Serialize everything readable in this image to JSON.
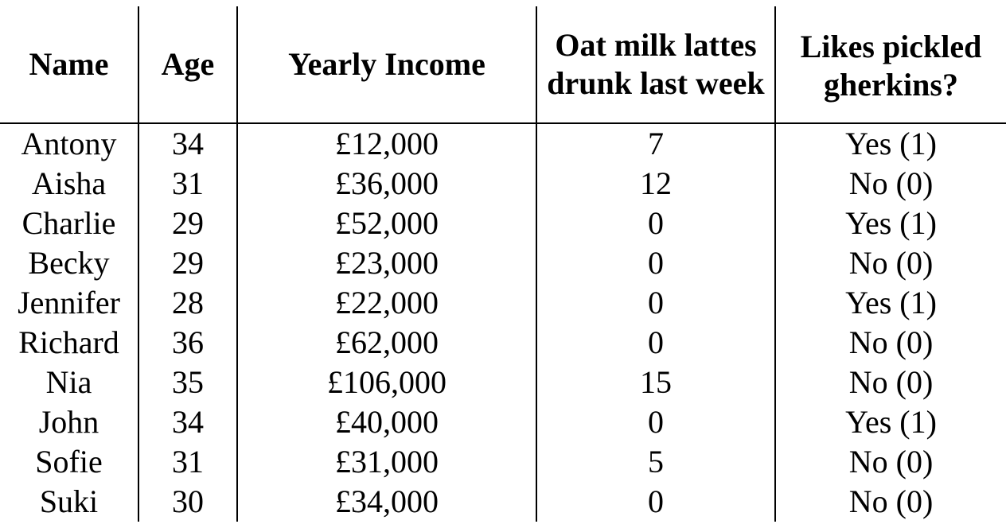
{
  "table": {
    "headers": {
      "name": "Name",
      "age": "Age",
      "income": "Yearly Income",
      "lattes": "Oat milk lattes drunk last week",
      "gherkins": "Likes pickled gherkins?"
    },
    "rows": [
      {
        "name": "Antony",
        "age": "34",
        "income": "£12,000",
        "lattes": "7",
        "gherkins": "Yes (1)"
      },
      {
        "name": "Aisha",
        "age": "31",
        "income": "£36,000",
        "lattes": "12",
        "gherkins": "No (0)"
      },
      {
        "name": "Charlie",
        "age": "29",
        "income": "£52,000",
        "lattes": "0",
        "gherkins": "Yes (1)"
      },
      {
        "name": "Becky",
        "age": "29",
        "income": "£23,000",
        "lattes": "0",
        "gherkins": "No (0)"
      },
      {
        "name": "Jennifer",
        "age": "28",
        "income": "£22,000",
        "lattes": "0",
        "gherkins": "Yes (1)"
      },
      {
        "name": "Richard",
        "age": "36",
        "income": "£62,000",
        "lattes": "0",
        "gherkins": "No (0)"
      },
      {
        "name": "Nia",
        "age": "35",
        "income": "£106,000",
        "lattes": "15",
        "gherkins": "No (0)"
      },
      {
        "name": "John",
        "age": "34",
        "income": "£40,000",
        "lattes": "0",
        "gherkins": "Yes (1)"
      },
      {
        "name": "Sofie",
        "age": "31",
        "income": "£31,000",
        "lattes": "5",
        "gherkins": "No (0)"
      },
      {
        "name": "Suki",
        "age": "30",
        "income": "£34,000",
        "lattes": "0",
        "gherkins": "No (0)"
      }
    ]
  }
}
